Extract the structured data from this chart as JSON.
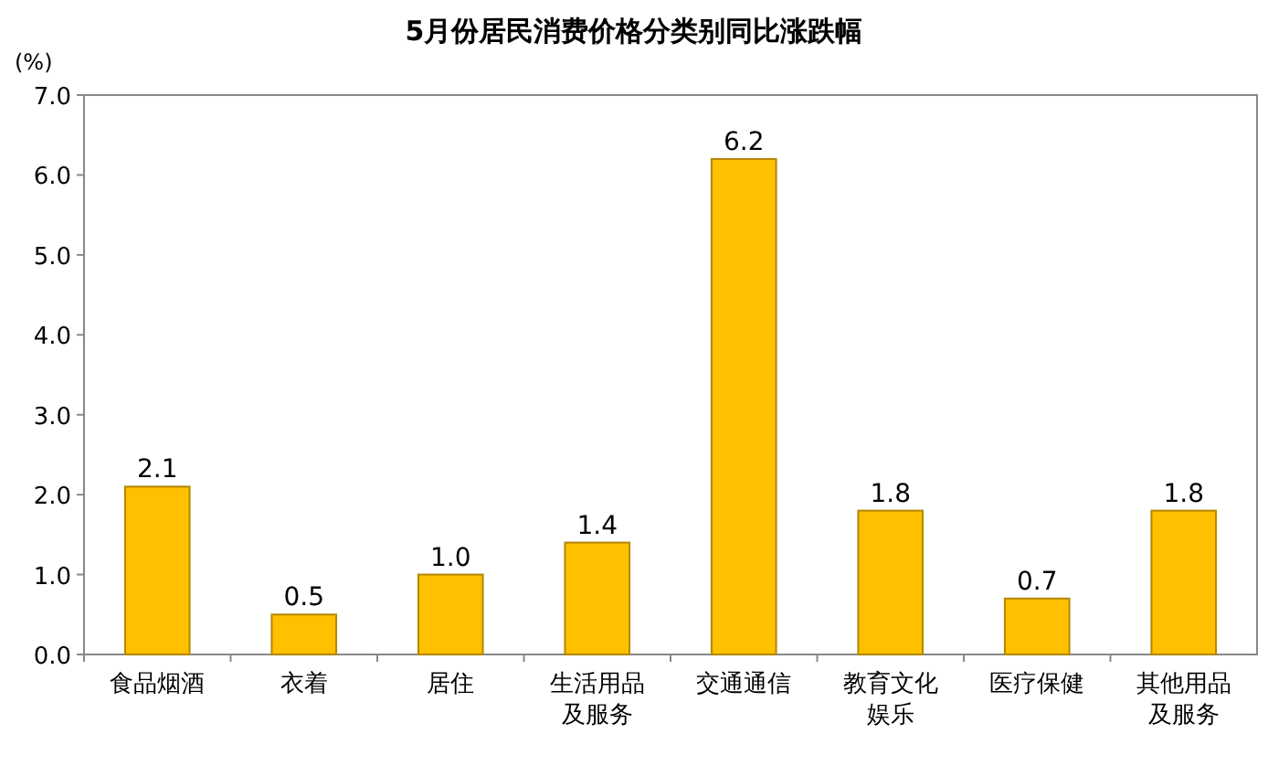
{
  "chart_data": {
    "type": "bar",
    "title": "5月份居民消费价格分类别同比涨跌幅",
    "ylabel": "(%)",
    "categories": [
      "食品烟酒",
      "衣着",
      "居住",
      "生活用品及服务",
      "交通通信",
      "教育文化娱乐",
      "医疗保健",
      "其他用品及服务"
    ],
    "values": [
      2.1,
      0.5,
      1.0,
      1.4,
      6.2,
      1.8,
      0.7,
      1.8
    ],
    "value_labels": [
      "2.1",
      "0.5",
      "1.0",
      "1.4",
      "6.2",
      "1.8",
      "0.7",
      "1.8"
    ],
    "color": "#ffc000",
    "ylim": [
      0,
      7
    ],
    "yticks": [
      {
        "value": 0,
        "label": "0.0"
      },
      {
        "value": 1,
        "label": "1.0"
      },
      {
        "value": 2,
        "label": "2.0"
      },
      {
        "value": 3,
        "label": "3.0"
      },
      {
        "value": 4,
        "label": "4.0"
      },
      {
        "value": 5,
        "label": "5.0"
      },
      {
        "value": 6,
        "label": "6.0"
      },
      {
        "value": 7,
        "label": "7.0"
      }
    ],
    "grid": false
  }
}
